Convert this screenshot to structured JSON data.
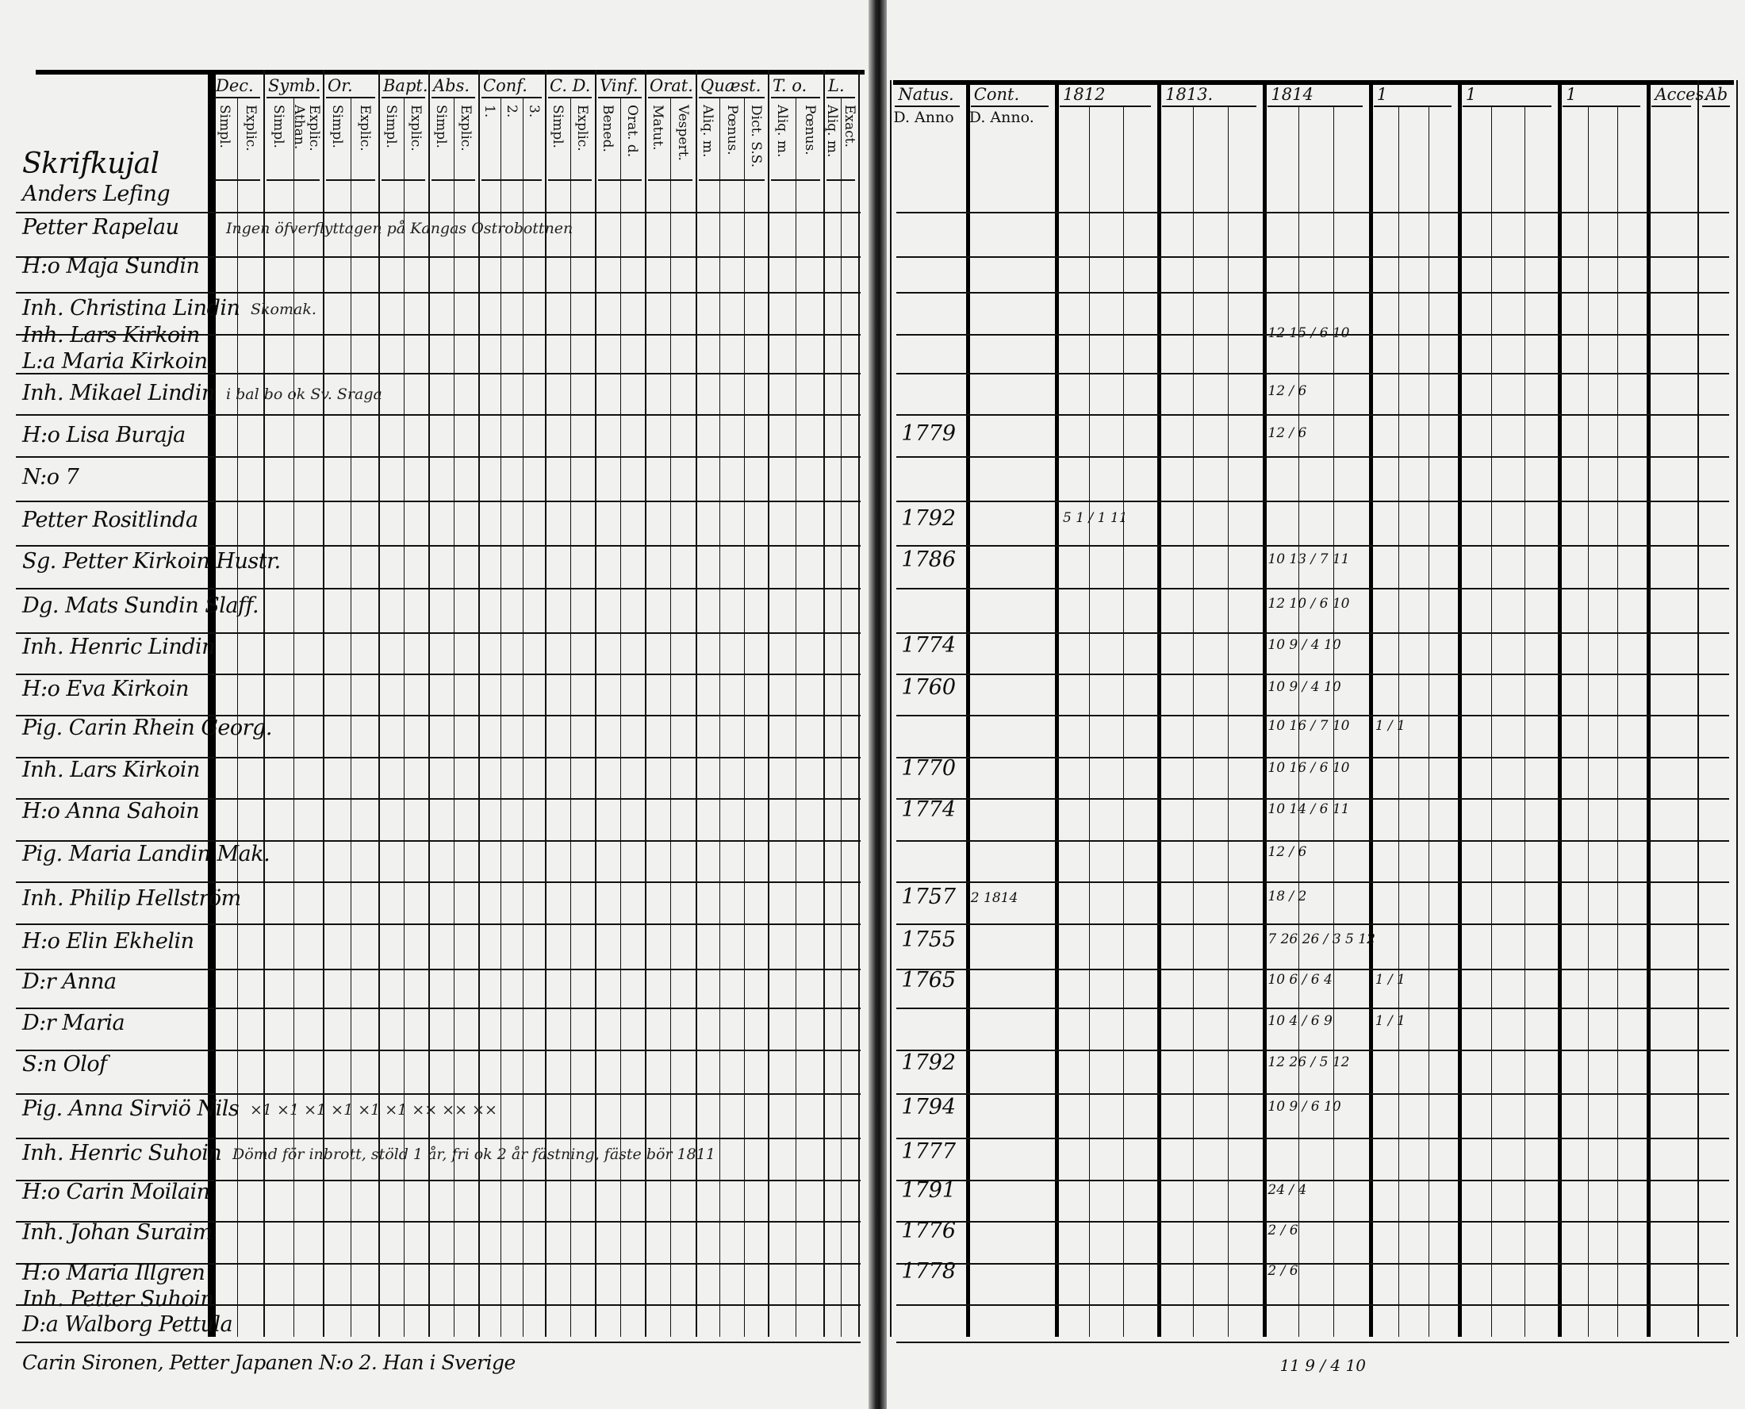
{
  "left_page": {
    "columns": [
      {
        "head": "Dec.",
        "subs": [
          "Simpl.",
          "Explic."
        ]
      },
      {
        "head": "Symb.",
        "subs": [
          "Simpl.",
          "Explic.\nAthan."
        ]
      },
      {
        "head": "Or.",
        "subs": [
          "Simpl.",
          "Explic."
        ]
      },
      {
        "head": "Bapt.",
        "subs": [
          "Simpl.",
          "Explic."
        ]
      },
      {
        "head": "Abs.",
        "subs": [
          "Simpl.",
          "Explic."
        ]
      },
      {
        "head": "Conf.",
        "subs": [
          "1.",
          "2.",
          "3."
        ]
      },
      {
        "head": "C. D.",
        "subs": [
          "Simpl.",
          "Explic."
        ]
      },
      {
        "head": "Vinf.",
        "subs": [
          "Bened.",
          "Orat. d."
        ]
      },
      {
        "head": "Orat.",
        "subs": [
          "Matut.",
          "Vespert."
        ]
      },
      {
        "head": "Quæst.",
        "subs": [
          "Aliq. m.",
          "Pœnus.",
          "Dict. S.S."
        ]
      },
      {
        "head": "T. o.",
        "subs": [
          "Aliq. m.",
          "Pœnus."
        ]
      },
      {
        "head": "L.",
        "subs": [
          "Aliq. m.",
          "Exact."
        ]
      }
    ],
    "rows": [
      {
        "name": "Skrifkujal"
      },
      {
        "name": "Anders Lefing"
      },
      {
        "name": "Petter Rapelau",
        "note": "Ingen   öfverflyttagen på Kangas Ostrobottnen"
      },
      {
        "name": "H:o Maja Sundin"
      },
      {
        "name": "Inh. Christina Lindin",
        "note": "Skomak."
      },
      {
        "name": "Inh. Lars Kirkoin"
      },
      {
        "name": "L:a Maria Kirkoin"
      },
      {
        "name": "Inh. Mikael Lindin",
        "note": "i  bal  bo  ok  Sv. Sraga"
      },
      {
        "name": "H:o Lisa Buraja"
      },
      {
        "name": "N:o 7"
      },
      {
        "name": "Petter Rositlinda"
      },
      {
        "name": "Sg. Petter Kirkoin Hustr."
      },
      {
        "name": "Dg. Mats Sundin Slaff."
      },
      {
        "name": "Inh. Henric Lindin"
      },
      {
        "name": "H:o Eva Kirkoin"
      },
      {
        "name": "Pig. Carin Rhein Georg."
      },
      {
        "name": "Inh. Lars Kirkoin"
      },
      {
        "name": "H:o Anna Sahoin"
      },
      {
        "name": "Pig. Maria Landin Mak."
      },
      {
        "name": "Inh. Philip Hellström"
      },
      {
        "name": "H:o Elin Ekhelin"
      },
      {
        "name": "D:r Anna"
      },
      {
        "name": "D:r Maria"
      },
      {
        "name": "S:n Olof"
      },
      {
        "name": "Pig. Anna Sirviö Nils",
        "note": "×1    ×1    ×1    ×1    ×1    ×1    ××   ××   ××"
      },
      {
        "name": "Inh. Henric Suhoin",
        "note": "Dömd för inbrott, stöld 1 år, fri ok 2 år fästning, fäste bör 1811"
      },
      {
        "name": "H:o Carin Moilain"
      },
      {
        "name": "Inh. Johan Suraim"
      },
      {
        "name": "H:o Maria Illgren"
      },
      {
        "name": "Inh. Petter Suhoin"
      },
      {
        "name": "D:a Walborg Pettula"
      }
    ],
    "footer_note": "Carin Sironen, Petter Japanen N:o 2. Han i Sverige"
  },
  "right_page": {
    "headers": [
      {
        "top": "Natus.",
        "bottom": "D.  Anno"
      },
      {
        "top": "Cont.",
        "bottom": "D.  Anno."
      },
      {
        "top": "1812",
        "bottom": ""
      },
      {
        "top": "1813.",
        "bottom": ""
      },
      {
        "top": "1814",
        "bottom": ""
      },
      {
        "top": "1",
        "bottom": ""
      },
      {
        "top": "1",
        "bottom": ""
      },
      {
        "top": "1",
        "bottom": ""
      },
      {
        "top": "Acces.",
        "bottom": ""
      },
      {
        "top": "Ab",
        "bottom": ""
      }
    ],
    "entries": [
      {
        "row": 5,
        "m1814": "12  15 / 6  10"
      },
      {
        "row": 7,
        "m1814": "12 / 6"
      },
      {
        "row": 8,
        "year": "1779",
        "m1814": "12 / 6"
      },
      {
        "row": 10,
        "year": "1792",
        "m1812": "5  1 / 1  11"
      },
      {
        "row": 11,
        "year": "1786",
        "m1814": "10  13 / 7  11"
      },
      {
        "row": 12,
        "m1814": "12  10 / 6  10"
      },
      {
        "row": 13,
        "year": "1774",
        "m1814": "10  9 / 4  10"
      },
      {
        "row": 14,
        "year": "1760",
        "m1814": "10  9 / 4  10"
      },
      {
        "row": 15,
        "m1814": "10  16 / 7  10",
        "m1": "1 / 1"
      },
      {
        "row": 16,
        "year": "1770",
        "m1814": "10  16 / 6  10"
      },
      {
        "row": 17,
        "year": "1774",
        "m1814": "10  14 / 6  11"
      },
      {
        "row": 18,
        "m1814": "12 / 6"
      },
      {
        "row": 19,
        "year": "1757",
        "cont": "2  1814",
        "m1814": "18 / 2"
      },
      {
        "row": 20,
        "year": "1755",
        "m1814": "7  26  26 / 3  5  12"
      },
      {
        "row": 21,
        "year": "1765",
        "m1814": "10  6 / 6  4",
        "m1": "1 / 1"
      },
      {
        "row": 22,
        "m1814": "10  4 / 6  9",
        "m1": "1 / 1"
      },
      {
        "row": 23,
        "year": "1792",
        "m1814": "12  26 / 5  12"
      },
      {
        "row": 24,
        "year": "1794",
        "m1814": "10  9 / 6  10"
      },
      {
        "row": 25,
        "year": "1777"
      },
      {
        "row": 26,
        "year": "1791",
        "m1814": "24 / 4"
      },
      {
        "row": 27,
        "year": "1776",
        "m1814": "2 / 6"
      },
      {
        "row": 28,
        "year": "1778",
        "m1814": "2 / 6"
      }
    ],
    "footer_mark": "11  9 / 4  10"
  }
}
